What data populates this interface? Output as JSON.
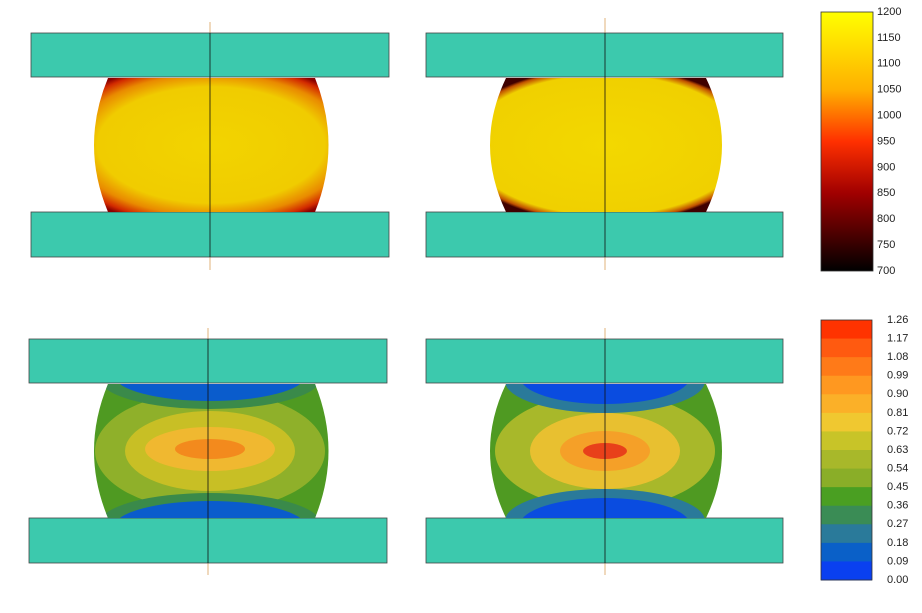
{
  "temperature_colorbar": {
    "labels": [
      "1200",
      "1150",
      "1100",
      "1050",
      "1000",
      "950",
      "900",
      "850",
      "800",
      "750",
      "700"
    ]
  },
  "strain_colorbar": {
    "labels": [
      "1.26",
      "1.17",
      "1.08",
      "0.99",
      "0.90",
      "0.81",
      "0.72",
      "0.63",
      "0.54",
      "0.45",
      "0.36",
      "0.27",
      "0.18",
      "0.09",
      "0.00"
    ]
  }
}
